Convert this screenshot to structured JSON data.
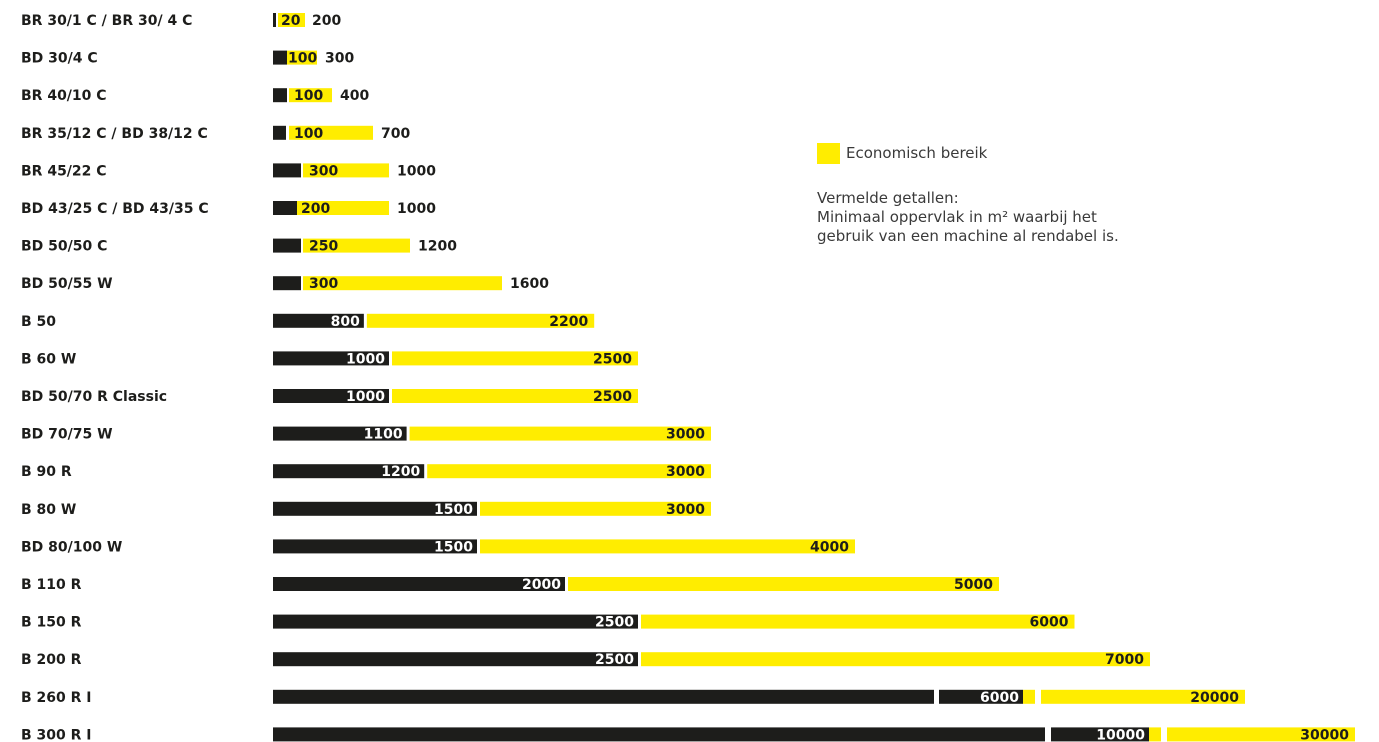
{
  "colors": {
    "black": "#1d1d1b",
    "yellow": "#ffed00"
  },
  "legend": {
    "label": "Economisch bereik",
    "note_line1": "Vermelde getallen:",
    "note_line2": "Minimaal oppervlak in m² waarbij het",
    "note_line3": "gebruik van een machine al rendabel is."
  },
  "chart_data": {
    "type": "bar",
    "title": "",
    "xlabel": "",
    "ylabel": "",
    "categories": [
      "BR 30/1 C / BR 30/ 4 C",
      "BD 30/4 C",
      "BR 40/10 C",
      "BR 35/12 C / BD 38/12 C",
      "BR 45/22 C",
      "BD 43/25 C / BD 43/35 C",
      "BD 50/50 C",
      "BD 50/55 W",
      "B 50",
      "B 60 W",
      "BD 50/70 R Classic",
      "BD 70/75 W",
      "B 90 R",
      "B 80 W",
      "BD 80/100 W",
      "B 110 R",
      "B 150 R",
      "B 200 R",
      "B 260 R I",
      "B 300 R I"
    ],
    "series": [
      {
        "name": "",
        "values": [
          20,
          100,
          100,
          100,
          300,
          200,
          250,
          300,
          800,
          1000,
          1000,
          1100,
          1200,
          1500,
          1500,
          2000,
          2500,
          2500,
          6000,
          10000
        ]
      },
      {
        "name": "",
        "values": [
          200,
          300,
          400,
          700,
          1000,
          1000,
          1200,
          1600,
          2200,
          2500,
          2500,
          3000,
          3000,
          3000,
          4000,
          5000,
          6000,
          7000,
          20000,
          30000
        ]
      }
    ]
  }
}
